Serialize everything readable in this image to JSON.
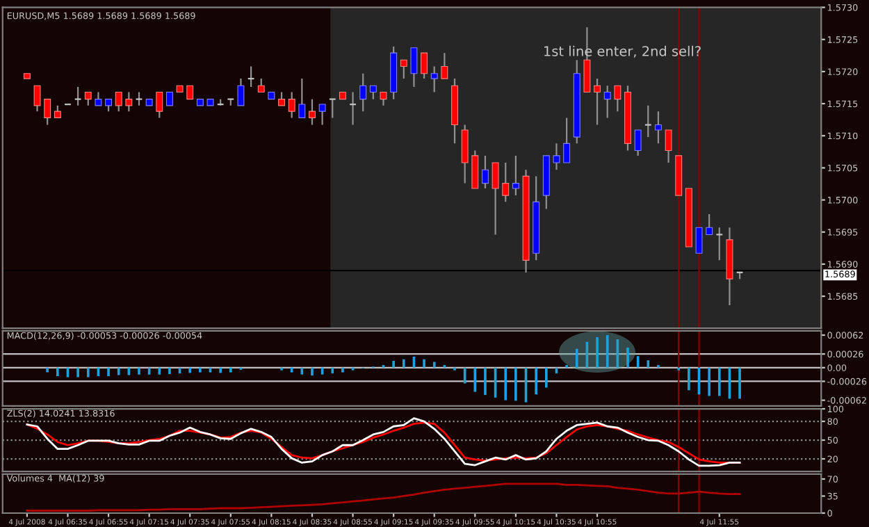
{
  "chart_data": [
    {
      "type": "candlestick",
      "title": "EURUSD,M5 1.5689 1.5689 1.5689 1.5689",
      "x": [
        "2008-07-04T06:15",
        "2008-07-04T06:20",
        "2008-07-04T06:25",
        "2008-07-04T06:30",
        "2008-07-04T06:35",
        "2008-07-04T06:40",
        "2008-07-04T06:45",
        "2008-07-04T06:50",
        "2008-07-04T06:55",
        "2008-07-04T07:00",
        "2008-07-04T07:05",
        "2008-07-04T07:10",
        "2008-07-04T07:15",
        "2008-07-04T07:20",
        "2008-07-04T07:25",
        "2008-07-04T07:30",
        "2008-07-04T07:35",
        "2008-07-04T07:40",
        "2008-07-04T07:45",
        "2008-07-04T07:50",
        "2008-07-04T07:55",
        "2008-07-04T08:00",
        "2008-07-04T08:05",
        "2008-07-04T08:10",
        "2008-07-04T08:15",
        "2008-07-04T08:20",
        "2008-07-04T08:25",
        "2008-07-04T08:30",
        "2008-07-04T08:35",
        "2008-07-04T08:40",
        "2008-07-04T08:45",
        "2008-07-04T08:50",
        "2008-07-04T08:55",
        "2008-07-04T09:00",
        "2008-07-04T09:05",
        "2008-07-04T09:10",
        "2008-07-04T09:15",
        "2008-07-04T09:20",
        "2008-07-04T09:25",
        "2008-07-04T09:30",
        "2008-07-04T09:35",
        "2008-07-04T09:40",
        "2008-07-04T09:45",
        "2008-07-04T09:50",
        "2008-07-04T09:55",
        "2008-07-04T10:00",
        "2008-07-04T10:05",
        "2008-07-04T10:10",
        "2008-07-04T10:15",
        "2008-07-04T10:20",
        "2008-07-04T10:25",
        "2008-07-04T10:30",
        "2008-07-04T10:35",
        "2008-07-04T10:40",
        "2008-07-04T10:45",
        "2008-07-04T10:50",
        "2008-07-04T10:55",
        "2008-07-04T11:00",
        "2008-07-04T11:05",
        "2008-07-04T11:10",
        "2008-07-04T11:15",
        "2008-07-04T11:20",
        "2008-07-04T11:25",
        "2008-07-04T11:30",
        "2008-07-04T11:35",
        "2008-07-04T11:40",
        "2008-07-04T11:45",
        "2008-07-04T11:50",
        "2008-07-04T11:55",
        "2008-07-04T12:00",
        "2008-07-04T12:05"
      ],
      "ohlc": [
        [
          1.57197,
          1.57197,
          1.57189,
          1.57189
        ],
        [
          1.57178,
          1.57178,
          1.57138,
          1.57147
        ],
        [
          1.57157,
          1.57157,
          1.57117,
          1.57128
        ],
        [
          1.57138,
          1.57147,
          1.57128,
          1.57128
        ],
        [
          1.57149,
          1.57149,
          1.57149,
          1.57149
        ],
        [
          1.57157,
          1.57176,
          1.57147,
          1.57157
        ],
        [
          1.57168,
          1.57168,
          1.57147,
          1.57157
        ],
        [
          1.57147,
          1.57168,
          1.57147,
          1.57157
        ],
        [
          1.57147,
          1.57157,
          1.57138,
          1.57157
        ],
        [
          1.57168,
          1.57168,
          1.57138,
          1.57147
        ],
        [
          1.57157,
          1.57168,
          1.57138,
          1.57147
        ],
        [
          1.57157,
          1.57168,
          1.57147,
          1.57157
        ],
        [
          1.57147,
          1.57157,
          1.57147,
          1.57157
        ],
        [
          1.57168,
          1.57168,
          1.57128,
          1.57138
        ],
        [
          1.57147,
          1.57168,
          1.57147,
          1.57168
        ],
        [
          1.57178,
          1.57178,
          1.57168,
          1.57168
        ],
        [
          1.57178,
          1.57178,
          1.57157,
          1.57157
        ],
        [
          1.57147,
          1.57157,
          1.57147,
          1.57157
        ],
        [
          1.57147,
          1.57157,
          1.57147,
          1.57157
        ],
        [
          1.57149,
          1.57157,
          1.57147,
          1.57149
        ],
        [
          1.57157,
          1.57157,
          1.57147,
          1.57157
        ],
        [
          1.57147,
          1.57189,
          1.57147,
          1.57178
        ],
        [
          1.57189,
          1.57208,
          1.57176,
          1.57189
        ],
        [
          1.57178,
          1.57189,
          1.57168,
          1.57168
        ],
        [
          1.57157,
          1.57168,
          1.57157,
          1.57168
        ],
        [
          1.57157,
          1.57168,
          1.57147,
          1.57147
        ],
        [
          1.57157,
          1.57168,
          1.57128,
          1.57138
        ],
        [
          1.57128,
          1.57189,
          1.57128,
          1.57149
        ],
        [
          1.57138,
          1.57157,
          1.57117,
          1.57128
        ],
        [
          1.57138,
          1.57149,
          1.57117,
          1.57149
        ],
        [
          1.57157,
          1.57157,
          1.57128,
          1.57157
        ],
        [
          1.57168,
          1.57168,
          1.57157,
          1.57157
        ],
        [
          1.57149,
          1.57168,
          1.57117,
          1.57149
        ],
        [
          1.57157,
          1.57197,
          1.57138,
          1.57178
        ],
        [
          1.57168,
          1.57178,
          1.57157,
          1.57178
        ],
        [
          1.57168,
          1.57168,
          1.57147,
          1.57157
        ],
        [
          1.57168,
          1.57239,
          1.57157,
          1.57229
        ],
        [
          1.57218,
          1.57218,
          1.57189,
          1.57208
        ],
        [
          1.57197,
          1.57237,
          1.57176,
          1.57237
        ],
        [
          1.57229,
          1.57229,
          1.57189,
          1.57197
        ],
        [
          1.57189,
          1.57208,
          1.57168,
          1.57197
        ],
        [
          1.57208,
          1.57229,
          1.57189,
          1.57189
        ],
        [
          1.57178,
          1.57189,
          1.57088,
          1.57117
        ],
        [
          1.57109,
          1.57117,
          1.57026,
          1.57058
        ],
        [
          1.57069,
          1.57077,
          1.57018,
          1.57018
        ],
        [
          1.57026,
          1.57069,
          1.57018,
          1.57047
        ],
        [
          1.57058,
          1.57058,
          1.56946,
          1.57018
        ],
        [
          1.57026,
          1.57058,
          1.56997,
          1.57007
        ],
        [
          1.57018,
          1.57069,
          1.57007,
          1.57026
        ],
        [
          1.57037,
          1.57047,
          1.56887,
          1.56906
        ],
        [
          1.56917,
          1.57037,
          1.56906,
          1.56997
        ],
        [
          1.57007,
          1.57069,
          1.56986,
          1.57069
        ],
        [
          1.57058,
          1.57088,
          1.57047,
          1.57069
        ],
        [
          1.57058,
          1.57128,
          1.57058,
          1.57088
        ],
        [
          1.57098,
          1.57218,
          1.57088,
          1.57197
        ],
        [
          1.57218,
          1.57269,
          1.57168,
          1.57168
        ],
        [
          1.57178,
          1.57189,
          1.57117,
          1.57168
        ],
        [
          1.57157,
          1.57178,
          1.57128,
          1.57168
        ],
        [
          1.57178,
          1.57178,
          1.57138,
          1.57157
        ],
        [
          1.57168,
          1.57178,
          1.57077,
          1.57088
        ],
        [
          1.57077,
          1.57109,
          1.57069,
          1.57109
        ],
        [
          1.57117,
          1.57147,
          1.57098,
          1.57117
        ],
        [
          1.57109,
          1.57138,
          1.57088,
          1.57117
        ],
        [
          1.57109,
          1.57109,
          1.57058,
          1.57077
        ],
        [
          1.57069,
          1.57069,
          1.57007,
          1.57007
        ],
        [
          1.57018,
          1.57018,
          1.56927,
          1.56927
        ],
        [
          1.56917,
          1.56957,
          1.56917,
          1.56957
        ],
        [
          1.56946,
          1.56978,
          1.56946,
          1.56957
        ],
        [
          1.56946,
          1.56957,
          1.56906,
          1.56946
        ],
        [
          1.56938,
          1.56957,
          1.56836,
          1.56877
        ],
        [
          1.56887,
          1.56887,
          1.56877,
          1.56887
        ]
      ],
      "xlim": [
        "2008-07-04T06:03",
        "2008-07-04T12:45"
      ],
      "ylim": [
        1.568,
        1.573
      ],
      "yticks": [
        1.5685,
        {
          "value": 1.569,
          "label": "1.5690"
        },
        1.5695,
        {
          "value": 1.57,
          "label": "1.5700"
        },
        1.5705,
        {
          "value": 1.571,
          "label": "1.5710"
        },
        1.5715,
        {
          "value": 1.572,
          "label": "1.5720"
        },
        1.5725,
        {
          "value": 1.573,
          "label": "1.5730"
        }
      ],
      "tick_labels": "y",
      "bands": [
        {
          "axis": "x",
          "from": "2008-07-04T08:44",
          "to": "2008-07-04T12:45",
          "color": "#262626"
        }
      ],
      "ref_lines": [
        {
          "axis": "y",
          "value": 1.5689,
          "label": "1.5689",
          "color": "#000000"
        },
        {
          "axis": "x",
          "value": "2008-07-04T11:35",
          "color": "#8b0000"
        },
        {
          "axis": "x",
          "value": "2008-07-04T11:45",
          "color": "#8b0000"
        }
      ],
      "annotations": [
        "1st line enter, 2nd sell?"
      ]
    },
    {
      "type": "bar",
      "title": "MACD(12,26,9) -0.00053 -0.00026 -0.00054",
      "x": [
        "2008-07-04T06:15",
        "2008-07-04T06:20",
        "2008-07-04T06:25",
        "2008-07-04T06:30",
        "2008-07-04T06:35",
        "2008-07-04T06:40",
        "2008-07-04T06:45",
        "2008-07-04T06:50",
        "2008-07-04T06:55",
        "2008-07-04T07:00",
        "2008-07-04T07:05",
        "2008-07-04T07:10",
        "2008-07-04T07:15",
        "2008-07-04T07:20",
        "2008-07-04T07:25",
        "2008-07-04T07:30",
        "2008-07-04T07:35",
        "2008-07-04T07:40",
        "2008-07-04T07:45",
        "2008-07-04T07:50",
        "2008-07-04T07:55",
        "2008-07-04T08:00",
        "2008-07-04T08:05",
        "2008-07-04T08:10",
        "2008-07-04T08:15",
        "2008-07-04T08:20",
        "2008-07-04T08:25",
        "2008-07-04T08:30",
        "2008-07-04T08:35",
        "2008-07-04T08:40",
        "2008-07-04T08:45",
        "2008-07-04T08:50",
        "2008-07-04T08:55",
        "2008-07-04T09:00",
        "2008-07-04T09:05",
        "2008-07-04T09:10",
        "2008-07-04T09:15",
        "2008-07-04T09:20",
        "2008-07-04T09:25",
        "2008-07-04T09:30",
        "2008-07-04T09:35",
        "2008-07-04T09:40",
        "2008-07-04T09:45",
        "2008-07-04T09:50",
        "2008-07-04T09:55",
        "2008-07-04T10:00",
        "2008-07-04T10:05",
        "2008-07-04T10:10",
        "2008-07-04T10:15",
        "2008-07-04T10:20",
        "2008-07-04T10:25",
        "2008-07-04T10:30",
        "2008-07-04T10:35",
        "2008-07-04T10:40",
        "2008-07-04T10:45",
        "2008-07-04T10:50",
        "2008-07-04T10:55",
        "2008-07-04T11:00",
        "2008-07-04T11:05",
        "2008-07-04T11:10",
        "2008-07-04T11:15",
        "2008-07-04T11:20",
        "2008-07-04T11:25",
        "2008-07-04T11:30",
        "2008-07-04T11:35",
        "2008-07-04T11:40",
        "2008-07-04T11:45",
        "2008-07-04T11:50",
        "2008-07-04T11:55",
        "2008-07-04T12:00",
        "2008-07-04T12:05"
      ],
      "series": [
        {
          "color": "#1ea0dc",
          "values": [
            0,
            0,
            -9e-05,
            -0.00016,
            -0.00018,
            -0.00018,
            -0.00018,
            -0.00016,
            -0.00016,
            -0.00014,
            -0.00014,
            -0.00013,
            -0.00013,
            -0.00013,
            -0.00012,
            -0.00011,
            -0.0001,
            -9e-05,
            -9e-05,
            -0.0001,
            -9e-05,
            -4e-05,
            0,
            0,
            0,
            -5e-05,
            -9e-05,
            -0.00013,
            -0.00015,
            -0.00013,
            -0.00011,
            -9e-05,
            -5e-05,
            -1e-05,
            2e-05,
            5e-05,
            0.00013,
            0.00016,
            0.00021,
            0.00016,
            0.00011,
            5e-05,
            -5e-05,
            -0.0003,
            -0.00046,
            -0.00052,
            -0.00057,
            -0.00062,
            -0.00063,
            -0.00066,
            -0.00051,
            -0.00038,
            -0.00011,
            5e-05,
            0.00036,
            0.00049,
            0.00058,
            0.00062,
            0.00054,
            0.00038,
            0.00022,
            0.00014,
            5e-05,
            null,
            -5e-05,
            -0.00043,
            -0.00051,
            -0.00054,
            -0.00054,
            -0.00059,
            -0.00059
          ]
        }
      ],
      "xlim": [
        "2008-07-04T06:03",
        "2008-07-04T12:45"
      ],
      "ylim": [
        -0.00073,
        0.0007
      ],
      "yticks": [
        -0.00062,
        -0.00026,
        {
          "value": 0,
          "label": "0.00"
        },
        0.00026,
        0.00062
      ],
      "tick_labels": "y",
      "ref_lines": [
        {
          "axis": "y",
          "value": 0.00026,
          "color": "#c0c0c0"
        },
        {
          "axis": "y",
          "value": 0,
          "color": "#c0c0c0"
        },
        {
          "axis": "y",
          "value": -0.00026,
          "color": "#c0c0c0"
        },
        {
          "axis": "x",
          "value": "2008-07-04T11:35",
          "color": "#8b0000"
        },
        {
          "axis": "x",
          "value": "2008-07-04T11:45",
          "color": "#8b0000"
        }
      ]
    },
    {
      "type": "line",
      "title": "ZLS(2) 14.0241 13.8316",
      "x": [
        "2008-07-04T06:15",
        "2008-07-04T06:20",
        "2008-07-04T06:25",
        "2008-07-04T06:30",
        "2008-07-04T06:35",
        "2008-07-04T06:40",
        "2008-07-04T06:45",
        "2008-07-04T06:50",
        "2008-07-04T06:55",
        "2008-07-04T07:00",
        "2008-07-04T07:05",
        "2008-07-04T07:10",
        "2008-07-04T07:15",
        "2008-07-04T07:20",
        "2008-07-04T07:25",
        "2008-07-04T07:30",
        "2008-07-04T07:35",
        "2008-07-04T07:40",
        "2008-07-04T07:45",
        "2008-07-04T07:50",
        "2008-07-04T07:55",
        "2008-07-04T08:00",
        "2008-07-04T08:05",
        "2008-07-04T08:10",
        "2008-07-04T08:15",
        "2008-07-04T08:20",
        "2008-07-04T08:25",
        "2008-07-04T08:30",
        "2008-07-04T08:35",
        "2008-07-04T08:40",
        "2008-07-04T08:45",
        "2008-07-04T08:50",
        "2008-07-04T08:55",
        "2008-07-04T09:00",
        "2008-07-04T09:05",
        "2008-07-04T09:10",
        "2008-07-04T09:15",
        "2008-07-04T09:20",
        "2008-07-04T09:25",
        "2008-07-04T09:30",
        "2008-07-04T09:35",
        "2008-07-04T09:40",
        "2008-07-04T09:45",
        "2008-07-04T09:50",
        "2008-07-04T09:55",
        "2008-07-04T10:00",
        "2008-07-04T10:05",
        "2008-07-04T10:10",
        "2008-07-04T10:15",
        "2008-07-04T10:20",
        "2008-07-04T10:25",
        "2008-07-04T10:30",
        "2008-07-04T10:35",
        "2008-07-04T10:40",
        "2008-07-04T10:45",
        "2008-07-04T10:50",
        "2008-07-04T10:55",
        "2008-07-04T11:00",
        "2008-07-04T11:05",
        "2008-07-04T11:10",
        "2008-07-04T11:15",
        "2008-07-04T11:20",
        "2008-07-04T11:25",
        "2008-07-04T11:30",
        "2008-07-04T11:35",
        "2008-07-04T11:40",
        "2008-07-04T11:45",
        "2008-07-04T11:50",
        "2008-07-04T11:55",
        "2008-07-04T12:00",
        "2008-07-04T12:05"
      ],
      "series": [
        {
          "color": "#ff0000",
          "values": [
            75,
            68,
            59,
            47,
            42,
            45,
            49,
            49,
            47,
            45,
            45,
            47,
            50,
            52,
            57,
            65,
            65,
            62,
            59,
            54,
            55,
            62,
            65,
            62,
            52,
            39,
            26,
            22,
            21,
            26,
            32,
            37,
            42,
            47,
            54,
            59,
            65,
            70,
            76,
            78,
            76,
            62,
            42,
            22,
            19,
            17,
            19,
            21,
            22,
            21,
            22,
            29,
            42,
            55,
            67,
            72,
            74,
            72,
            68,
            65,
            59,
            54,
            50,
            47,
            39,
            29,
            19,
            16,
            14,
            14,
            14
          ]
        },
        {
          "color": "#ffffff",
          "values": [
            75,
            72,
            52,
            36,
            36,
            42,
            49,
            49,
            49,
            45,
            43,
            43,
            49,
            49,
            57,
            62,
            70,
            63,
            59,
            53,
            52,
            61,
            68,
            63,
            55,
            36,
            21,
            14,
            16,
            26,
            32,
            42,
            42,
            50,
            59,
            63,
            72,
            74,
            85,
            80,
            68,
            52,
            32,
            12,
            10,
            16,
            22,
            19,
            26,
            19,
            21,
            32,
            52,
            65,
            74,
            76,
            78,
            72,
            70,
            62,
            55,
            50,
            49,
            42,
            32,
            19,
            9,
            9,
            10,
            14,
            14
          ]
        }
      ],
      "xlim": [
        "2008-07-04T06:03",
        "2008-07-04T12:45"
      ],
      "ylim": [
        0,
        100
      ],
      "yticks": [
        20,
        50,
        80,
        100
      ],
      "tick_labels": "y",
      "line_style": "solid",
      "ref_lines": [
        {
          "axis": "y",
          "value": 80,
          "color": "#909090",
          "line_style": "dotted"
        },
        {
          "axis": "y",
          "value": 50,
          "color": "#909090",
          "line_style": "dotted"
        },
        {
          "axis": "y",
          "value": 20,
          "color": "#909090",
          "line_style": "dotted"
        },
        {
          "axis": "x",
          "value": "2008-07-04T11:35",
          "color": "#8b0000"
        },
        {
          "axis": "x",
          "value": "2008-07-04T11:45",
          "color": "#8b0000"
        }
      ]
    },
    {
      "type": "line",
      "title": "Volumes 4  MA(12) 39",
      "x": [
        "2008-07-04T06:15",
        "2008-07-04T06:20",
        "2008-07-04T06:25",
        "2008-07-04T06:30",
        "2008-07-04T06:35",
        "2008-07-04T06:40",
        "2008-07-04T06:45",
        "2008-07-04T06:50",
        "2008-07-04T06:55",
        "2008-07-04T07:00",
        "2008-07-04T07:05",
        "2008-07-04T07:10",
        "2008-07-04T07:15",
        "2008-07-04T07:20",
        "2008-07-04T07:25",
        "2008-07-04T07:30",
        "2008-07-04T07:35",
        "2008-07-04T07:40",
        "2008-07-04T07:45",
        "2008-07-04T07:50",
        "2008-07-04T07:55",
        "2008-07-04T08:00",
        "2008-07-04T08:05",
        "2008-07-04T08:10",
        "2008-07-04T08:15",
        "2008-07-04T08:20",
        "2008-07-04T08:25",
        "2008-07-04T08:30",
        "2008-07-04T08:35",
        "2008-07-04T08:40",
        "2008-07-04T08:45",
        "2008-07-04T08:50",
        "2008-07-04T08:55",
        "2008-07-04T09:00",
        "2008-07-04T09:05",
        "2008-07-04T09:10",
        "2008-07-04T09:15",
        "2008-07-04T09:20",
        "2008-07-04T09:25",
        "2008-07-04T09:30",
        "2008-07-04T09:35",
        "2008-07-04T09:40",
        "2008-07-04T09:45",
        "2008-07-04T09:50",
        "2008-07-04T09:55",
        "2008-07-04T10:00",
        "2008-07-04T10:05",
        "2008-07-04T10:10",
        "2008-07-04T10:15",
        "2008-07-04T10:20",
        "2008-07-04T10:25",
        "2008-07-04T10:30",
        "2008-07-04T10:35",
        "2008-07-04T10:40",
        "2008-07-04T10:45",
        "2008-07-04T10:50",
        "2008-07-04T10:55",
        "2008-07-04T11:00",
        "2008-07-04T11:05",
        "2008-07-04T11:10",
        "2008-07-04T11:15",
        "2008-07-04T11:20",
        "2008-07-04T11:25",
        "2008-07-04T11:30",
        "2008-07-04T11:35",
        "2008-07-04T11:40",
        "2008-07-04T11:45",
        "2008-07-04T11:50",
        "2008-07-04T11:55",
        "2008-07-04T12:00",
        "2008-07-04T12:05"
      ],
      "series": [
        {
          "color": "#b00000",
          "values": [
            5,
            5,
            5,
            5,
            5,
            5,
            5,
            6,
            6,
            6,
            6,
            6,
            7,
            7,
            8,
            8,
            8,
            8,
            9,
            10,
            10,
            10,
            11,
            12,
            13,
            14,
            15,
            16,
            17,
            18,
            20,
            22,
            24,
            26,
            28,
            30,
            32,
            35,
            38,
            42,
            45,
            48,
            50,
            52,
            54,
            56,
            58,
            60,
            60,
            60,
            60,
            60,
            60,
            58,
            58,
            57,
            56,
            55,
            52,
            50,
            48,
            45,
            42,
            40,
            40,
            42,
            44,
            42,
            40,
            39,
            39
          ]
        }
      ],
      "xlim": [
        "2008-07-04T06:03",
        "2008-07-04T12:45"
      ],
      "ylim": [
        0,
        80
      ],
      "yticks": [
        0,
        35,
        70
      ],
      "xticks": [
        {
          "value": "2008-07-04T06:15",
          "label": "4 Jul 2008"
        },
        {
          "value": "2008-07-04T06:35",
          "label": "4 Jul 06:35"
        },
        {
          "value": "2008-07-04T06:55",
          "label": "4 Jul 06:55"
        },
        {
          "value": "2008-07-04T07:15",
          "label": "4 Jul 07:15"
        },
        {
          "value": "2008-07-04T07:35",
          "label": "4 Jul 07:35"
        },
        {
          "value": "2008-07-04T07:55",
          "label": "4 Jul 07:55"
        },
        {
          "value": "2008-07-04T08:15",
          "label": "4 Jul 08:15"
        },
        {
          "value": "2008-07-04T08:35",
          "label": "4 Jul 08:35"
        },
        {
          "value": "2008-07-04T08:55",
          "label": "4 Jul 08:55"
        },
        {
          "value": "2008-07-04T09:15",
          "label": "4 Jul 09:15"
        },
        {
          "value": "2008-07-04T09:35",
          "label": "4 Jul 09:35"
        },
        {
          "value": "2008-07-04T09:55",
          "label": "4 Jul 09:55"
        },
        {
          "value": "2008-07-04T10:15",
          "label": "4 Jul 10:15"
        },
        {
          "value": "2008-07-04T10:35",
          "label": "4 Jul 10:35"
        },
        {
          "value": "2008-07-04T10:55",
          "label": "4 Jul 10:55"
        },
        {
          "value": "2008-07-04T11:55",
          "label": "4 Jul 11:55"
        }
      ],
      "ref_lines": [
        {
          "axis": "x",
          "value": "2008-07-04T11:35",
          "color": "#8b0000"
        },
        {
          "axis": "x",
          "value": "2008-07-04T11:45",
          "color": "#8b0000"
        }
      ]
    }
  ]
}
